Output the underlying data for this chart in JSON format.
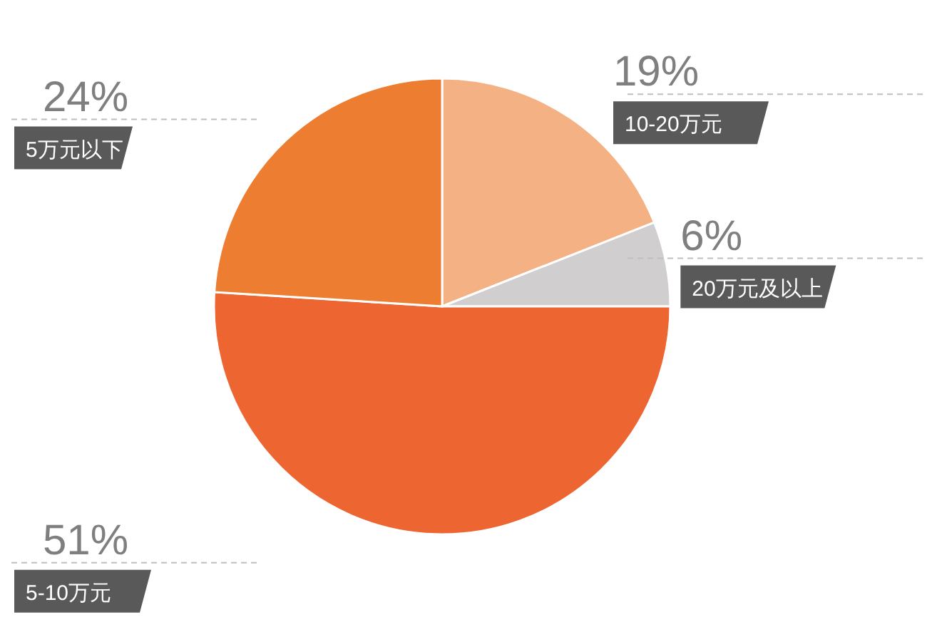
{
  "chart_data": {
    "type": "pie",
    "categories": [
      "10-20万元",
      "20万元及以上",
      "5-10万元",
      "5万元以下"
    ],
    "values": [
      19,
      6,
      51,
      24
    ],
    "colors": [
      "#f4b183",
      "#d0cece",
      "#ed6530",
      "#ed7d31"
    ],
    "value_labels": [
      "19%",
      "6%",
      "51%",
      "24%"
    ]
  }
}
